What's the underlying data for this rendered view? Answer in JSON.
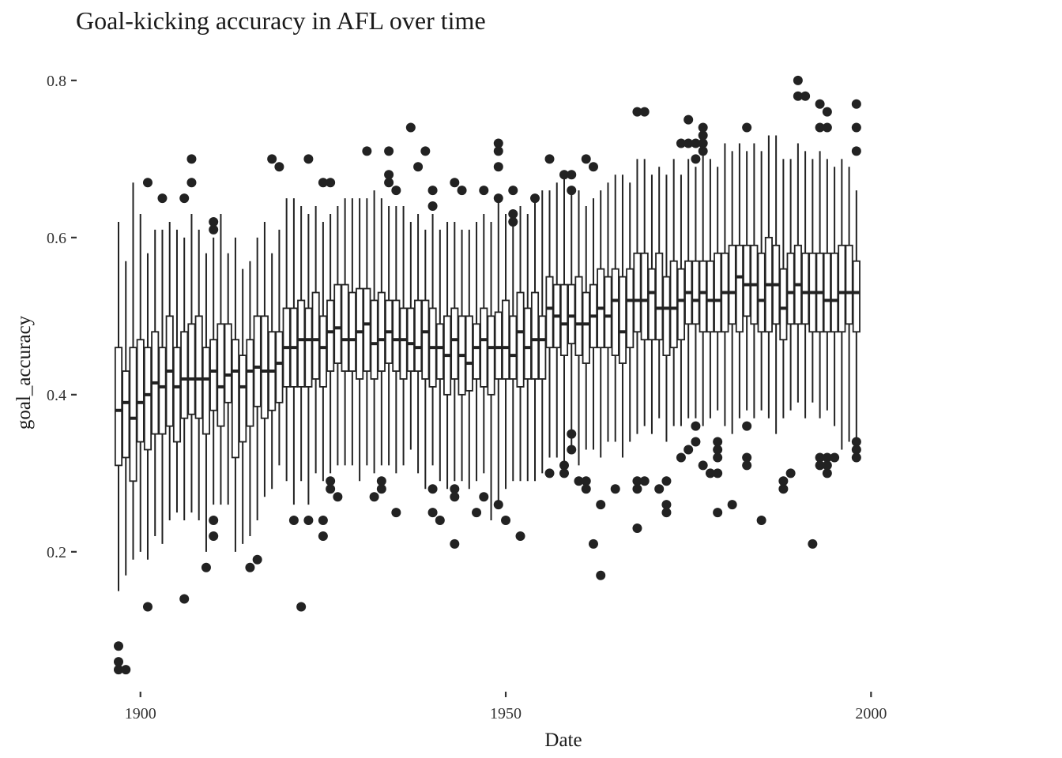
{
  "chart_data": {
    "type": "boxplot",
    "title": "Goal-kicking accuracy in AFL over time",
    "xlabel": "Date",
    "ylabel": "goal_accuracy",
    "xlim": [
      1897,
      2019
    ],
    "ylim": [
      0.03,
      0.83
    ],
    "x_ticks": [
      1900,
      1950,
      2000
    ],
    "y_ticks": [
      0.2,
      0.4,
      0.6,
      0.8
    ],
    "x_tick_labels": [
      "1900",
      "1950",
      "2000"
    ],
    "y_tick_labels": [
      "0.2",
      "0.4",
      "0.6",
      "0.8"
    ],
    "grid": false,
    "legend": "none",
    "colors": {
      "box_stroke": "#222222",
      "box_fill": "#ffffff",
      "outlier": "#222222",
      "axis_tick": "#333333"
    },
    "boxes": [
      {
        "year": 1897,
        "lo": 0.15,
        "q1": 0.31,
        "med": 0.38,
        "q3": 0.46,
        "hi": 0.62,
        "out": [
          0.08,
          0.06,
          0.05
        ]
      },
      {
        "year": 1898,
        "lo": 0.17,
        "q1": 0.32,
        "med": 0.39,
        "q3": 0.43,
        "hi": 0.57,
        "out": [
          0.05
        ]
      },
      {
        "year": 1899,
        "lo": 0.19,
        "q1": 0.29,
        "med": 0.37,
        "q3": 0.46,
        "hi": 0.67,
        "out": []
      },
      {
        "year": 1900,
        "lo": 0.2,
        "q1": 0.34,
        "med": 0.39,
        "q3": 0.47,
        "hi": 0.63,
        "out": []
      },
      {
        "year": 1901,
        "lo": 0.19,
        "q1": 0.33,
        "med": 0.4,
        "q3": 0.46,
        "hi": 0.58,
        "out": [
          0.13,
          0.67
        ]
      },
      {
        "year": 1902,
        "lo": 0.22,
        "q1": 0.35,
        "med": 0.415,
        "q3": 0.48,
        "hi": 0.61,
        "out": []
      },
      {
        "year": 1903,
        "lo": 0.21,
        "q1": 0.35,
        "med": 0.41,
        "q3": 0.46,
        "hi": 0.61,
        "out": [
          0.65
        ]
      },
      {
        "year": 1904,
        "lo": 0.24,
        "q1": 0.36,
        "med": 0.43,
        "q3": 0.5,
        "hi": 0.62,
        "out": []
      },
      {
        "year": 1905,
        "lo": 0.25,
        "q1": 0.34,
        "med": 0.41,
        "q3": 0.46,
        "hi": 0.61,
        "out": []
      },
      {
        "year": 1906,
        "lo": 0.24,
        "q1": 0.37,
        "med": 0.42,
        "q3": 0.48,
        "hi": 0.6,
        "out": [
          0.14,
          0.65
        ]
      },
      {
        "year": 1907,
        "lo": 0.25,
        "q1": 0.375,
        "med": 0.42,
        "q3": 0.49,
        "hi": 0.63,
        "out": [
          0.67,
          0.7
        ]
      },
      {
        "year": 1908,
        "lo": 0.24,
        "q1": 0.37,
        "med": 0.42,
        "q3": 0.5,
        "hi": 0.61,
        "out": []
      },
      {
        "year": 1909,
        "lo": 0.2,
        "q1": 0.35,
        "med": 0.42,
        "q3": 0.46,
        "hi": 0.58,
        "out": [
          0.18
        ]
      },
      {
        "year": 1910,
        "lo": 0.26,
        "q1": 0.38,
        "med": 0.43,
        "q3": 0.47,
        "hi": 0.6,
        "out": [
          0.22,
          0.24,
          0.61,
          0.62
        ]
      },
      {
        "year": 1911,
        "lo": 0.26,
        "q1": 0.36,
        "med": 0.41,
        "q3": 0.49,
        "hi": 0.63,
        "out": []
      },
      {
        "year": 1912,
        "lo": 0.26,
        "q1": 0.39,
        "med": 0.425,
        "q3": 0.49,
        "hi": 0.58,
        "out": []
      },
      {
        "year": 1913,
        "lo": 0.2,
        "q1": 0.32,
        "med": 0.43,
        "q3": 0.47,
        "hi": 0.6,
        "out": []
      },
      {
        "year": 1914,
        "lo": 0.21,
        "q1": 0.34,
        "med": 0.41,
        "q3": 0.45,
        "hi": 0.56,
        "out": []
      },
      {
        "year": 1915,
        "lo": 0.22,
        "q1": 0.36,
        "med": 0.43,
        "q3": 0.47,
        "hi": 0.57,
        "out": [
          0.18
        ]
      },
      {
        "year": 1916,
        "lo": 0.24,
        "q1": 0.385,
        "med": 0.435,
        "q3": 0.5,
        "hi": 0.6,
        "out": [
          0.19
        ]
      },
      {
        "year": 1917,
        "lo": 0.27,
        "q1": 0.37,
        "med": 0.43,
        "q3": 0.5,
        "hi": 0.62,
        "out": []
      },
      {
        "year": 1918,
        "lo": 0.28,
        "q1": 0.38,
        "med": 0.43,
        "q3": 0.48,
        "hi": 0.58,
        "out": [
          0.7
        ]
      },
      {
        "year": 1919,
        "lo": 0.31,
        "q1": 0.39,
        "med": 0.44,
        "q3": 0.48,
        "hi": 0.61,
        "out": [
          0.69
        ]
      },
      {
        "year": 1920,
        "lo": 0.29,
        "q1": 0.41,
        "med": 0.46,
        "q3": 0.51,
        "hi": 0.65,
        "out": []
      },
      {
        "year": 1921,
        "lo": 0.26,
        "q1": 0.41,
        "med": 0.46,
        "q3": 0.51,
        "hi": 0.65,
        "out": [
          0.24
        ]
      },
      {
        "year": 1922,
        "lo": 0.29,
        "q1": 0.41,
        "med": 0.47,
        "q3": 0.52,
        "hi": 0.64,
        "out": [
          0.13
        ]
      },
      {
        "year": 1923,
        "lo": 0.26,
        "q1": 0.41,
        "med": 0.47,
        "q3": 0.51,
        "hi": 0.63,
        "out": [
          0.24,
          0.7
        ]
      },
      {
        "year": 1924,
        "lo": 0.3,
        "q1": 0.42,
        "med": 0.47,
        "q3": 0.53,
        "hi": 0.64,
        "out": []
      },
      {
        "year": 1925,
        "lo": 0.29,
        "q1": 0.41,
        "med": 0.46,
        "q3": 0.5,
        "hi": 0.62,
        "out": [
          0.22,
          0.24,
          0.67
        ]
      },
      {
        "year": 1926,
        "lo": 0.3,
        "q1": 0.43,
        "med": 0.48,
        "q3": 0.52,
        "hi": 0.63,
        "out": [
          0.28,
          0.29,
          0.67
        ]
      },
      {
        "year": 1927,
        "lo": 0.31,
        "q1": 0.44,
        "med": 0.485,
        "q3": 0.54,
        "hi": 0.64,
        "out": [
          0.27
        ]
      },
      {
        "year": 1928,
        "lo": 0.31,
        "q1": 0.43,
        "med": 0.47,
        "q3": 0.54,
        "hi": 0.65,
        "out": []
      },
      {
        "year": 1929,
        "lo": 0.31,
        "q1": 0.43,
        "med": 0.47,
        "q3": 0.53,
        "hi": 0.65,
        "out": []
      },
      {
        "year": 1930,
        "lo": 0.29,
        "q1": 0.42,
        "med": 0.48,
        "q3": 0.535,
        "hi": 0.65,
        "out": []
      },
      {
        "year": 1931,
        "lo": 0.31,
        "q1": 0.43,
        "med": 0.49,
        "q3": 0.535,
        "hi": 0.65,
        "out": [
          0.71
        ]
      },
      {
        "year": 1932,
        "lo": 0.3,
        "q1": 0.42,
        "med": 0.465,
        "q3": 0.52,
        "hi": 0.66,
        "out": [
          0.27
        ]
      },
      {
        "year": 1933,
        "lo": 0.31,
        "q1": 0.43,
        "med": 0.47,
        "q3": 0.53,
        "hi": 0.65,
        "out": [
          0.28,
          0.29
        ]
      },
      {
        "year": 1934,
        "lo": 0.31,
        "q1": 0.44,
        "med": 0.48,
        "q3": 0.52,
        "hi": 0.64,
        "out": [
          0.67,
          0.68,
          0.71
        ]
      },
      {
        "year": 1935,
        "lo": 0.3,
        "q1": 0.43,
        "med": 0.47,
        "q3": 0.52,
        "hi": 0.64,
        "out": [
          0.25,
          0.66
        ]
      },
      {
        "year": 1936,
        "lo": 0.31,
        "q1": 0.42,
        "med": 0.47,
        "q3": 0.51,
        "hi": 0.64,
        "out": []
      },
      {
        "year": 1937,
        "lo": 0.33,
        "q1": 0.43,
        "med": 0.465,
        "q3": 0.51,
        "hi": 0.62,
        "out": [
          0.74
        ]
      },
      {
        "year": 1938,
        "lo": 0.3,
        "q1": 0.43,
        "med": 0.46,
        "q3": 0.52,
        "hi": 0.63,
        "out": [
          0.69
        ]
      },
      {
        "year": 1939,
        "lo": 0.28,
        "q1": 0.42,
        "med": 0.48,
        "q3": 0.52,
        "hi": 0.61,
        "out": [
          0.71
        ]
      },
      {
        "year": 1940,
        "lo": 0.31,
        "q1": 0.41,
        "med": 0.46,
        "q3": 0.51,
        "hi": 0.63,
        "out": [
          0.25,
          0.28,
          0.64,
          0.66
        ]
      },
      {
        "year": 1941,
        "lo": 0.29,
        "q1": 0.42,
        "med": 0.46,
        "q3": 0.49,
        "hi": 0.61,
        "out": [
          0.24
        ]
      },
      {
        "year": 1942,
        "lo": 0.28,
        "q1": 0.4,
        "med": 0.45,
        "q3": 0.5,
        "hi": 0.62,
        "out": []
      },
      {
        "year": 1943,
        "lo": 0.29,
        "q1": 0.42,
        "med": 0.47,
        "q3": 0.51,
        "hi": 0.62,
        "out": [
          0.21,
          0.27,
          0.28,
          0.67
        ]
      },
      {
        "year": 1944,
        "lo": 0.29,
        "q1": 0.4,
        "med": 0.45,
        "q3": 0.5,
        "hi": 0.61,
        "out": [
          0.66
        ]
      },
      {
        "year": 1945,
        "lo": 0.28,
        "q1": 0.405,
        "med": 0.44,
        "q3": 0.5,
        "hi": 0.61,
        "out": []
      },
      {
        "year": 1946,
        "lo": 0.29,
        "q1": 0.42,
        "med": 0.46,
        "q3": 0.49,
        "hi": 0.62,
        "out": [
          0.25
        ]
      },
      {
        "year": 1947,
        "lo": 0.3,
        "q1": 0.41,
        "med": 0.47,
        "q3": 0.51,
        "hi": 0.63,
        "out": [
          0.27,
          0.66
        ]
      },
      {
        "year": 1948,
        "lo": 0.24,
        "q1": 0.4,
        "med": 0.46,
        "q3": 0.5,
        "hi": 0.62,
        "out": []
      },
      {
        "year": 1949,
        "lo": 0.26,
        "q1": 0.42,
        "med": 0.46,
        "q3": 0.505,
        "hi": 0.65,
        "out": [
          0.26,
          0.65,
          0.69,
          0.71,
          0.72
        ]
      },
      {
        "year": 1950,
        "lo": 0.28,
        "q1": 0.42,
        "med": 0.46,
        "q3": 0.52,
        "hi": 0.63,
        "out": [
          0.24
        ]
      },
      {
        "year": 1951,
        "lo": 0.29,
        "q1": 0.42,
        "med": 0.45,
        "q3": 0.5,
        "hi": 0.63,
        "out": [
          0.62,
          0.63,
          0.66
        ]
      },
      {
        "year": 1952,
        "lo": 0.29,
        "q1": 0.41,
        "med": 0.48,
        "q3": 0.53,
        "hi": 0.64,
        "out": [
          0.22
        ]
      },
      {
        "year": 1953,
        "lo": 0.29,
        "q1": 0.42,
        "med": 0.46,
        "q3": 0.51,
        "hi": 0.63,
        "out": []
      },
      {
        "year": 1954,
        "lo": 0.29,
        "q1": 0.42,
        "med": 0.47,
        "q3": 0.53,
        "hi": 0.65,
        "out": [
          0.65
        ]
      },
      {
        "year": 1955,
        "lo": 0.3,
        "q1": 0.42,
        "med": 0.47,
        "q3": 0.5,
        "hi": 0.66,
        "out": []
      },
      {
        "year": 1956,
        "lo": 0.32,
        "q1": 0.46,
        "med": 0.51,
        "q3": 0.55,
        "hi": 0.66,
        "out": [
          0.3,
          0.7
        ]
      },
      {
        "year": 1957,
        "lo": 0.32,
        "q1": 0.46,
        "med": 0.5,
        "q3": 0.54,
        "hi": 0.67,
        "out": []
      },
      {
        "year": 1958,
        "lo": 0.3,
        "q1": 0.45,
        "med": 0.49,
        "q3": 0.54,
        "hi": 0.68,
        "out": [
          0.3,
          0.31,
          0.68
        ]
      },
      {
        "year": 1959,
        "lo": 0.33,
        "q1": 0.465,
        "med": 0.5,
        "q3": 0.54,
        "hi": 0.66,
        "out": [
          0.33,
          0.35,
          0.66,
          0.68
        ]
      },
      {
        "year": 1960,
        "lo": 0.31,
        "q1": 0.45,
        "med": 0.49,
        "q3": 0.55,
        "hi": 0.66,
        "out": [
          0.29
        ]
      },
      {
        "year": 1961,
        "lo": 0.33,
        "q1": 0.44,
        "med": 0.49,
        "q3": 0.53,
        "hi": 0.64,
        "out": [
          0.28,
          0.29,
          0.7
        ]
      },
      {
        "year": 1962,
        "lo": 0.33,
        "q1": 0.46,
        "med": 0.5,
        "q3": 0.54,
        "hi": 0.65,
        "out": [
          0.21,
          0.69
        ]
      },
      {
        "year": 1963,
        "lo": 0.32,
        "q1": 0.46,
        "med": 0.51,
        "q3": 0.56,
        "hi": 0.66,
        "out": [
          0.17,
          0.26
        ]
      },
      {
        "year": 1964,
        "lo": 0.34,
        "q1": 0.46,
        "med": 0.5,
        "q3": 0.55,
        "hi": 0.67,
        "out": []
      },
      {
        "year": 1965,
        "lo": 0.34,
        "q1": 0.45,
        "med": 0.52,
        "q3": 0.56,
        "hi": 0.68,
        "out": [
          0.28
        ]
      },
      {
        "year": 1966,
        "lo": 0.32,
        "q1": 0.44,
        "med": 0.48,
        "q3": 0.55,
        "hi": 0.68,
        "out": []
      },
      {
        "year": 1967,
        "lo": 0.34,
        "q1": 0.46,
        "med": 0.52,
        "q3": 0.56,
        "hi": 0.67,
        "out": []
      },
      {
        "year": 1968,
        "lo": 0.35,
        "q1": 0.48,
        "med": 0.52,
        "q3": 0.58,
        "hi": 0.7,
        "out": [
          0.23,
          0.28,
          0.29,
          0.76
        ]
      },
      {
        "year": 1969,
        "lo": 0.36,
        "q1": 0.47,
        "med": 0.52,
        "q3": 0.58,
        "hi": 0.7,
        "out": [
          0.29,
          0.76
        ]
      },
      {
        "year": 1970,
        "lo": 0.35,
        "q1": 0.47,
        "med": 0.53,
        "q3": 0.56,
        "hi": 0.68,
        "out": []
      },
      {
        "year": 1971,
        "lo": 0.37,
        "q1": 0.47,
        "med": 0.51,
        "q3": 0.58,
        "hi": 0.69,
        "out": [
          0.28
        ]
      },
      {
        "year": 1972,
        "lo": 0.34,
        "q1": 0.45,
        "med": 0.51,
        "q3": 0.55,
        "hi": 0.68,
        "out": [
          0.25,
          0.26,
          0.29
        ]
      },
      {
        "year": 1973,
        "lo": 0.36,
        "q1": 0.46,
        "med": 0.51,
        "q3": 0.57,
        "hi": 0.7,
        "out": []
      },
      {
        "year": 1974,
        "lo": 0.36,
        "q1": 0.47,
        "med": 0.52,
        "q3": 0.56,
        "hi": 0.68,
        "out": [
          0.32,
          0.72
        ]
      },
      {
        "year": 1975,
        "lo": 0.37,
        "q1": 0.49,
        "med": 0.53,
        "q3": 0.57,
        "hi": 0.7,
        "out": [
          0.33,
          0.72,
          0.75
        ]
      },
      {
        "year": 1976,
        "lo": 0.37,
        "q1": 0.49,
        "med": 0.52,
        "q3": 0.57,
        "hi": 0.69,
        "out": [
          0.34,
          0.36,
          0.7,
          0.72
        ]
      },
      {
        "year": 1977,
        "lo": 0.36,
        "q1": 0.48,
        "med": 0.53,
        "q3": 0.57,
        "hi": 0.71,
        "out": [
          0.31,
          0.71,
          0.72,
          0.73,
          0.74
        ]
      },
      {
        "year": 1978,
        "lo": 0.37,
        "q1": 0.48,
        "med": 0.52,
        "q3": 0.57,
        "hi": 0.7,
        "out": [
          0.3
        ]
      },
      {
        "year": 1979,
        "lo": 0.38,
        "q1": 0.48,
        "med": 0.52,
        "q3": 0.58,
        "hi": 0.69,
        "out": [
          0.25,
          0.3,
          0.32,
          0.33,
          0.34
        ]
      },
      {
        "year": 1980,
        "lo": 0.36,
        "q1": 0.48,
        "med": 0.53,
        "q3": 0.58,
        "hi": 0.72,
        "out": []
      },
      {
        "year": 1981,
        "lo": 0.35,
        "q1": 0.49,
        "med": 0.53,
        "q3": 0.59,
        "hi": 0.71,
        "out": [
          0.26
        ]
      },
      {
        "year": 1982,
        "lo": 0.37,
        "q1": 0.48,
        "med": 0.55,
        "q3": 0.59,
        "hi": 0.72,
        "out": []
      },
      {
        "year": 1983,
        "lo": 0.38,
        "q1": 0.5,
        "med": 0.54,
        "q3": 0.59,
        "hi": 0.71,
        "out": [
          0.31,
          0.32,
          0.36,
          0.74
        ]
      },
      {
        "year": 1984,
        "lo": 0.37,
        "q1": 0.49,
        "med": 0.54,
        "q3": 0.59,
        "hi": 0.72,
        "out": []
      },
      {
        "year": 1985,
        "lo": 0.38,
        "q1": 0.48,
        "med": 0.52,
        "q3": 0.58,
        "hi": 0.71,
        "out": [
          0.24
        ]
      },
      {
        "year": 1986,
        "lo": 0.37,
        "q1": 0.48,
        "med": 0.54,
        "q3": 0.6,
        "hi": 0.73,
        "out": []
      },
      {
        "year": 1987,
        "lo": 0.35,
        "q1": 0.49,
        "med": 0.54,
        "q3": 0.59,
        "hi": 0.73,
        "out": []
      },
      {
        "year": 1988,
        "lo": 0.37,
        "q1": 0.47,
        "med": 0.51,
        "q3": 0.56,
        "hi": 0.7,
        "out": [
          0.28,
          0.29
        ]
      },
      {
        "year": 1989,
        "lo": 0.38,
        "q1": 0.49,
        "med": 0.53,
        "q3": 0.58,
        "hi": 0.7,
        "out": [
          0.3
        ]
      },
      {
        "year": 1990,
        "lo": 0.39,
        "q1": 0.49,
        "med": 0.54,
        "q3": 0.59,
        "hi": 0.72,
        "out": [
          0.78,
          0.8
        ]
      },
      {
        "year": 1991,
        "lo": 0.37,
        "q1": 0.49,
        "med": 0.53,
        "q3": 0.58,
        "hi": 0.71,
        "out": [
          0.78
        ]
      },
      {
        "year": 1992,
        "lo": 0.39,
        "q1": 0.48,
        "med": 0.53,
        "q3": 0.58,
        "hi": 0.7,
        "out": [
          0.21
        ]
      },
      {
        "year": 1993,
        "lo": 0.37,
        "q1": 0.48,
        "med": 0.53,
        "q3": 0.58,
        "hi": 0.71,
        "out": [
          0.31,
          0.32,
          0.74,
          0.77
        ]
      },
      {
        "year": 1994,
        "lo": 0.38,
        "q1": 0.48,
        "med": 0.52,
        "q3": 0.58,
        "hi": 0.7,
        "out": [
          0.3,
          0.31,
          0.32,
          0.74,
          0.76
        ]
      },
      {
        "year": 1995,
        "lo": 0.36,
        "q1": 0.48,
        "med": 0.52,
        "q3": 0.58,
        "hi": 0.69,
        "out": [
          0.32
        ]
      },
      {
        "year": 1996,
        "lo": 0.33,
        "q1": 0.48,
        "med": 0.53,
        "q3": 0.59,
        "hi": 0.7,
        "out": []
      },
      {
        "year": 1997,
        "lo": 0.34,
        "q1": 0.49,
        "med": 0.53,
        "q3": 0.59,
        "hi": 0.69,
        "out": []
      },
      {
        "year": 1998,
        "lo": 0.34,
        "q1": 0.48,
        "med": 0.53,
        "q3": 0.57,
        "hi": 0.66,
        "out": [
          0.32,
          0.33,
          0.34,
          0.71,
          0.74,
          0.77
        ]
      }
    ]
  }
}
